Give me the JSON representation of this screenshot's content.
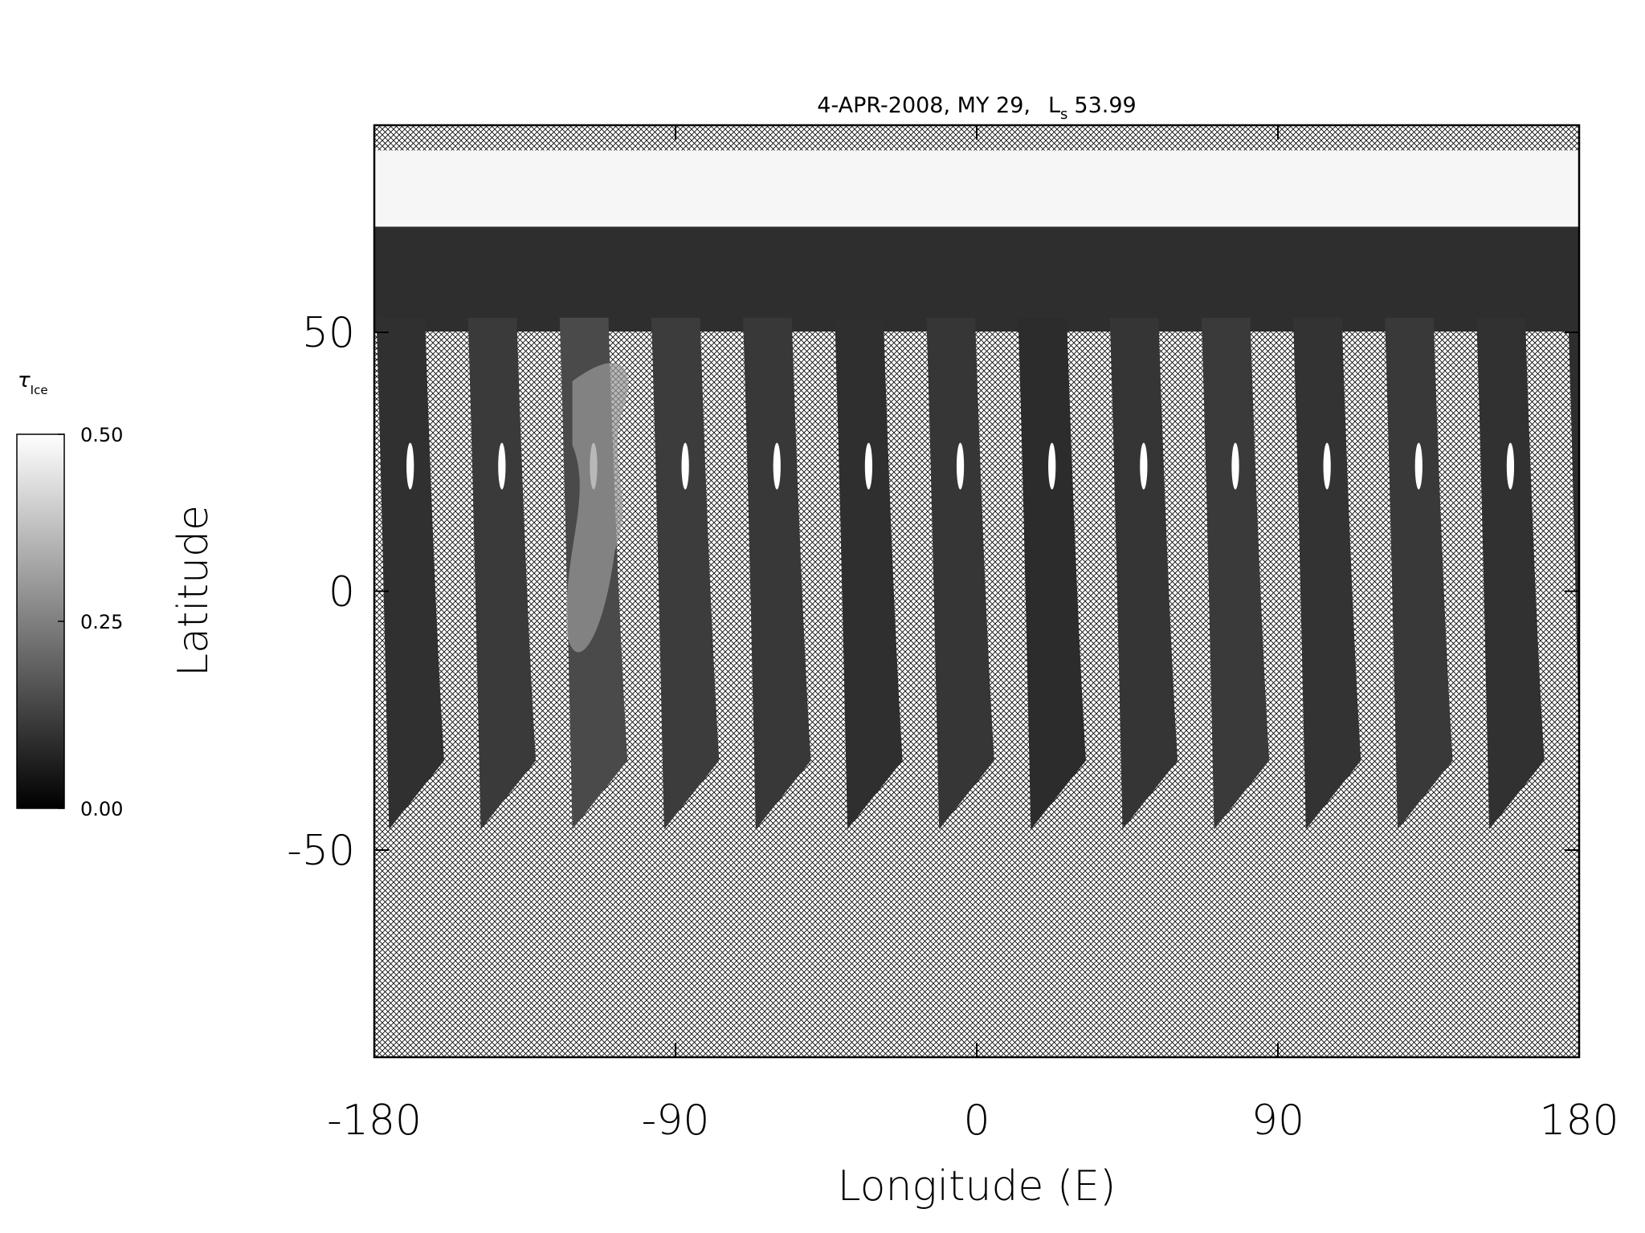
{
  "chart_data": {
    "type": "map",
    "title": "4-APR-2008, MY 29,",
    "title_symbol": "L",
    "title_subscript": "s",
    "title_value": 53.99,
    "xlabel": "Longitude (E)",
    "ylabel": "Latitude",
    "xlim": [
      -180,
      180
    ],
    "ylim": [
      -90,
      90
    ],
    "xticks": [
      -180,
      -90,
      0,
      90,
      180
    ],
    "yticks": [
      -50,
      0,
      50
    ],
    "colorbar": {
      "label": "τ",
      "label_subscript": "Ice",
      "lim": [
        0,
        0.5
      ],
      "ticks": [
        {
          "value": 0,
          "label": "0.00"
        },
        {
          "value": 0.25,
          "label": "0.25"
        },
        {
          "value": 0.5,
          "label": "0.50"
        }
      ],
      "colors": [
        "#000000",
        "#ffffff"
      ]
    }
  }
}
